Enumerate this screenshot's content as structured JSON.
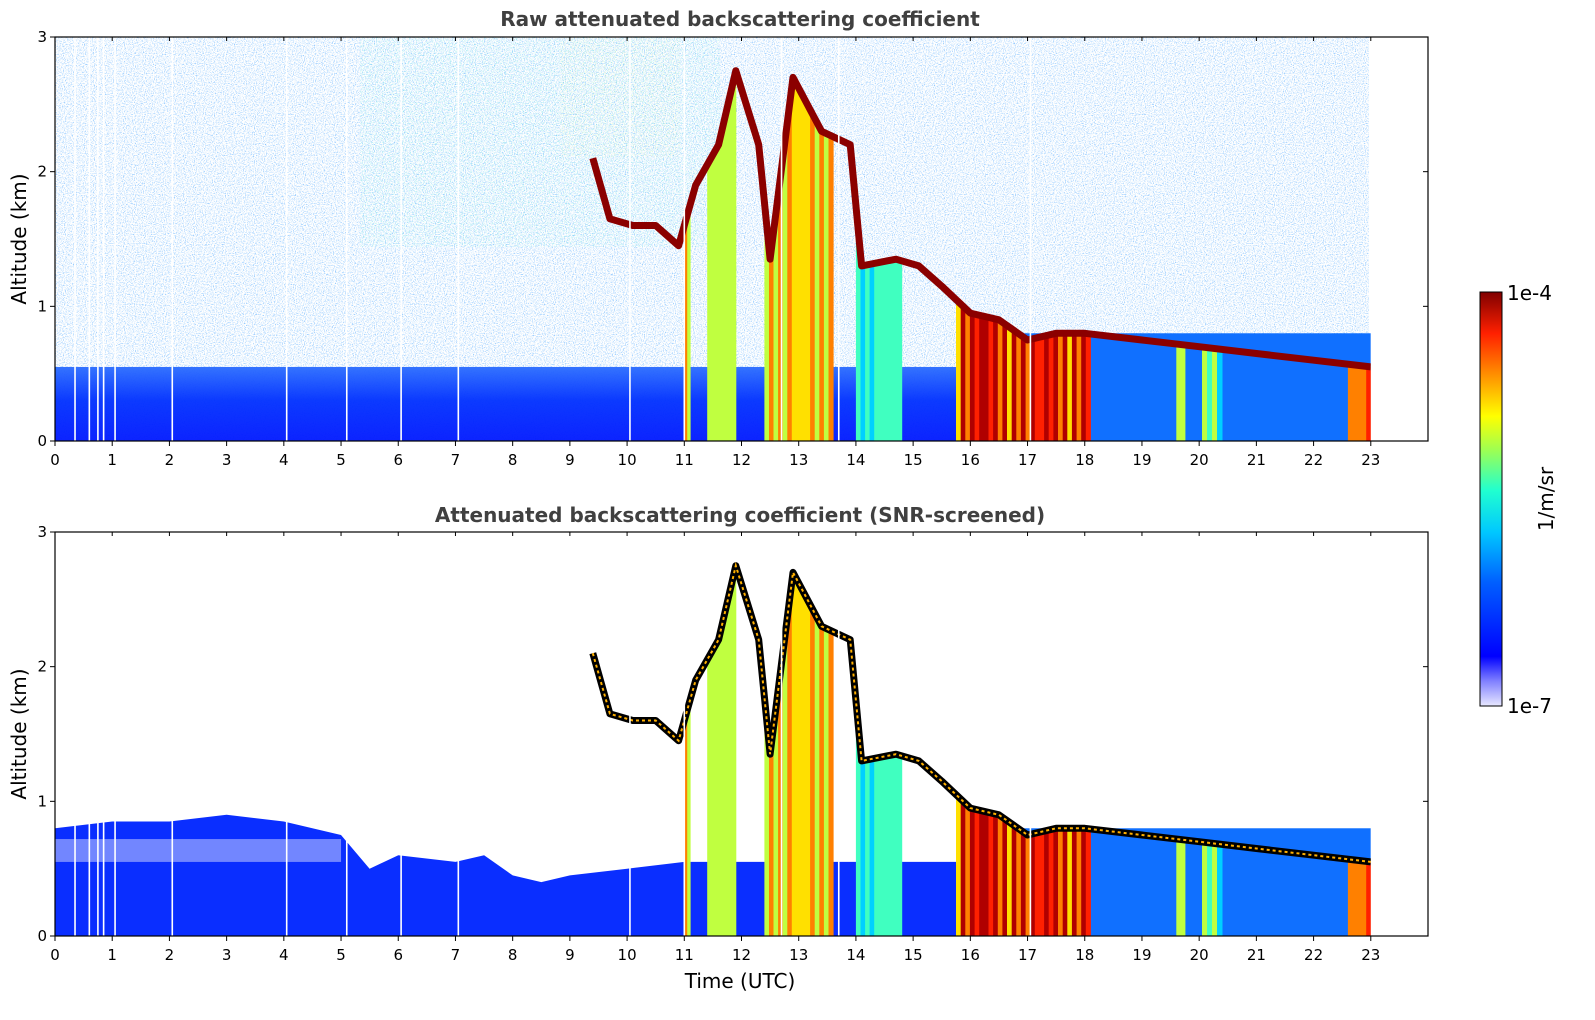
{
  "chart_data": [
    {
      "type": "heatmap",
      "title": "Raw attenuated backscattering coefficient",
      "xlabel": "",
      "ylabel": "Altitude (km)",
      "xlim": [
        0,
        24
      ],
      "ylim": [
        0,
        3
      ],
      "x_ticks": [
        "0",
        "1",
        "2",
        "3",
        "4",
        "5",
        "6",
        "7",
        "8",
        "9",
        "10",
        "11",
        "12",
        "13",
        "14",
        "15",
        "16",
        "17",
        "18",
        "19",
        "20",
        "21",
        "22",
        "23"
      ],
      "y_ticks": [
        "0",
        "1",
        "2",
        "3"
      ],
      "data_end_hour": 23,
      "screened": false,
      "cloud_top_km": [
        {
          "x": 9.4,
          "y": 2.1
        },
        {
          "x": 9.7,
          "y": 1.65
        },
        {
          "x": 10.1,
          "y": 1.6
        },
        {
          "x": 10.5,
          "y": 1.6
        },
        {
          "x": 10.9,
          "y": 1.45
        },
        {
          "x": 11.2,
          "y": 1.9
        },
        {
          "x": 11.6,
          "y": 2.2
        },
        {
          "x": 11.9,
          "y": 2.75
        },
        {
          "x": 12.3,
          "y": 2.2
        },
        {
          "x": 12.5,
          "y": 1.35
        },
        {
          "x": 12.9,
          "y": 2.7
        },
        {
          "x": 13.4,
          "y": 2.3
        },
        {
          "x": 13.9,
          "y": 2.2
        },
        {
          "x": 14.1,
          "y": 1.3
        },
        {
          "x": 14.7,
          "y": 1.35
        },
        {
          "x": 15.1,
          "y": 1.3
        },
        {
          "x": 15.5,
          "y": 1.15
        },
        {
          "x": 16.0,
          "y": 0.95
        },
        {
          "x": 16.5,
          "y": 0.9
        },
        {
          "x": 17.0,
          "y": 0.75
        },
        {
          "x": 17.5,
          "y": 0.8
        },
        {
          "x": 18.0,
          "y": 0.8
        },
        {
          "x": 19.0,
          "y": 0.75
        },
        {
          "x": 20.0,
          "y": 0.7
        },
        {
          "x": 21.0,
          "y": 0.65
        },
        {
          "x": 22.0,
          "y": 0.6
        },
        {
          "x": 23.0,
          "y": 0.55
        }
      ],
      "precip_shafts": [
        {
          "x0": 11.0,
          "x1": 11.1,
          "level": 0.65
        },
        {
          "x0": 11.4,
          "x1": 11.9,
          "level": 0.45
        },
        {
          "x0": 12.4,
          "x1": 13.6,
          "level": 0.6
        },
        {
          "x0": 14.0,
          "x1": 14.8,
          "level": 0.35
        },
        {
          "x0": 15.75,
          "x1": 18.1,
          "level": 0.85
        },
        {
          "x0": 19.6,
          "x1": 19.75,
          "level": 0.45
        },
        {
          "x0": 20.05,
          "x1": 20.4,
          "level": 0.4
        },
        {
          "x0": 22.6,
          "x1": 23.0,
          "level": 0.7
        }
      ]
    },
    {
      "type": "heatmap",
      "title": "Attenuated backscattering coefficient (SNR-screened)",
      "xlabel": "Time (UTC)",
      "ylabel": "Altitude (km)",
      "xlim": [
        0,
        24
      ],
      "ylim": [
        0,
        3
      ],
      "x_ticks": [
        "0",
        "1",
        "2",
        "3",
        "4",
        "5",
        "6",
        "7",
        "8",
        "9",
        "10",
        "11",
        "12",
        "13",
        "14",
        "15",
        "16",
        "17",
        "18",
        "19",
        "20",
        "21",
        "22",
        "23"
      ],
      "y_ticks": [
        "0",
        "1",
        "2",
        "3"
      ],
      "data_end_hour": 23,
      "screened": true,
      "boundary_layer_top_km": [
        {
          "x": 0,
          "y": 0.8
        },
        {
          "x": 1,
          "y": 0.85
        },
        {
          "x": 2,
          "y": 0.85
        },
        {
          "x": 3,
          "y": 0.9
        },
        {
          "x": 4,
          "y": 0.85
        },
        {
          "x": 5,
          "y": 0.75
        },
        {
          "x": 5.5,
          "y": 0.5
        },
        {
          "x": 6,
          "y": 0.6
        },
        {
          "x": 7,
          "y": 0.55
        },
        {
          "x": 7.5,
          "y": 0.6
        },
        {
          "x": 8,
          "y": 0.45
        },
        {
          "x": 8.5,
          "y": 0.4
        },
        {
          "x": 9,
          "y": 0.45
        },
        {
          "x": 10,
          "y": 0.5
        },
        {
          "x": 11,
          "y": 0.55
        }
      ]
    }
  ],
  "colorbar": {
    "label": "1/m/sr",
    "max_label": "1e-4",
    "min_label": "1e-7",
    "scale": "log"
  }
}
